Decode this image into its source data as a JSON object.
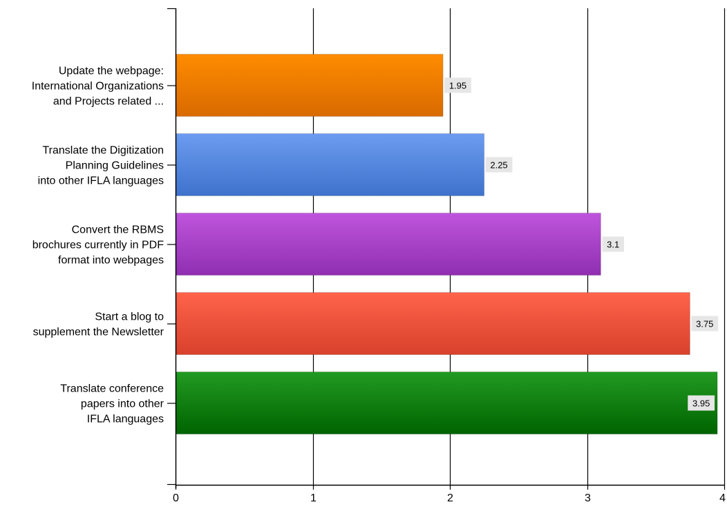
{
  "chart_data": {
    "type": "bar",
    "orientation": "horizontal",
    "title": "",
    "xlabel": "",
    "ylabel": "",
    "xlim": [
      0,
      4
    ],
    "x_ticks": [
      0,
      1,
      2,
      3,
      4
    ],
    "grid": "vertical",
    "legend": "none",
    "categories": [
      [
        "Update the webpage:",
        "International Organizations",
        "and Projects related ..."
      ],
      [
        "Translate the Digitization",
        "Planning Guidelines",
        "into other IFLA languages"
      ],
      [
        "Convert the RBMS",
        "brochures currently in PDF",
        "format into webpages"
      ],
      [
        "Start a blog to",
        "supplement the Newsletter"
      ],
      [
        "Translate conference",
        "papers into other",
        "IFLA languages"
      ]
    ],
    "values": [
      1.95,
      2.25,
      3.1,
      3.75,
      3.95
    ],
    "value_labels": [
      "1.95",
      "2.25",
      "3.1",
      "3.75",
      "3.95"
    ],
    "colors": [
      [
        "#ff8c00",
        "#d86a00"
      ],
      [
        "#6b9cf0",
        "#3f72cc"
      ],
      [
        "#bf55dd",
        "#8f2fb0"
      ],
      [
        "#ff634a",
        "#d8412c"
      ],
      [
        "#229a22",
        "#006400"
      ]
    ]
  }
}
